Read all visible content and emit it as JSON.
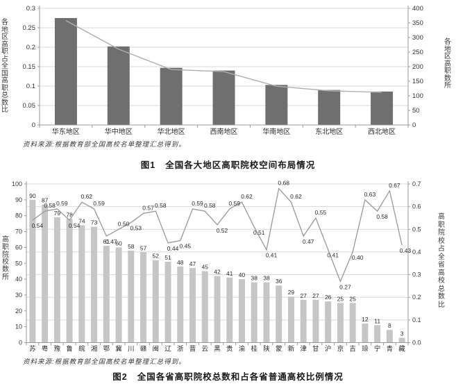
{
  "figures": [
    {
      "caption_label": "图1",
      "caption_text": "全国各大地区高职院校空间布局情况",
      "source_note": "资料来源:根据教育部全国高校名单整理汇总得到。"
    },
    {
      "caption_label": "图2",
      "caption_text": "全国各省高职院校总数和占各省普通高校比例情况",
      "source_note": "资料来源:根据教育部全国高校名单整理汇总得到。"
    }
  ],
  "chart_data": [
    {
      "type": "bar",
      "subtype": "bar+line combo, dual axis",
      "title": "图1 全国各大地区高职院校空间布局情况",
      "categories": [
        "华东地区",
        "华中地区",
        "华北地区",
        "西南地区",
        "华南地区",
        "东北地区",
        "西北地区"
      ],
      "series": [
        {
          "name": "各地区高职占全国高职总数比",
          "type": "bar",
          "axis": "left",
          "values": [
            0.275,
            0.202,
            0.147,
            0.14,
            0.103,
            0.09,
            0.086
          ],
          "labels_shown": false
        },
        {
          "name": "各地区高职数(所)",
          "type": "line",
          "axis": "right",
          "values": [
            358,
            260,
            190,
            183,
            133,
            117,
            112
          ],
          "labels_shown": false,
          "note": "values estimated from line position against right axis; chart shows no data labels"
        }
      ],
      "ylabel_left": "各地区高职占全国高职总数比",
      "ylabel_right": "各地区高职数所",
      "ylim_left": [
        0,
        0.3
      ],
      "ylim_right": [
        0,
        400
      ],
      "yticks_left": [
        "0.3",
        "0.25",
        "0.2",
        "0.15",
        "0.1",
        "0.05",
        "0"
      ],
      "yticks_right": [
        "400",
        "350",
        "300",
        "250",
        "200",
        "150",
        "100",
        "50",
        "0"
      ],
      "grid": "horizontal, every 0.05 of left axis",
      "legend": "none",
      "bar_color": "#6f6f6f",
      "line_color": "#aeaeae"
    },
    {
      "type": "bar",
      "subtype": "bar+line combo, dual axis",
      "title": "图2 全国各省高职院校总数和占各省普通高校比例情况",
      "categories": [
        "苏",
        "粤",
        "豫",
        "鲁",
        "皖",
        "湘",
        "鄂",
        "冀",
        "川",
        "赣",
        "闽",
        "辽",
        "浙",
        "晋",
        "云",
        "黑",
        "贵",
        "渝",
        "桂",
        "陕",
        "蒙",
        "新",
        "津",
        "甘",
        "沪",
        "京",
        "吉",
        "琼",
        "宁",
        "青",
        "藏"
      ],
      "series": [
        {
          "name": "高职院校数(所)",
          "type": "bar",
          "axis": "left",
          "values": [
            90,
            87,
            79,
            78,
            74,
            73,
            61,
            60,
            58,
            57,
            52,
            51,
            48,
            47,
            45,
            42,
            41,
            40,
            38,
            38,
            36,
            29,
            27,
            27,
            26,
            25,
            25,
            12,
            11,
            8,
            3
          ],
          "labels_shown": true
        },
        {
          "name": "高职院校占全省高校总数比",
          "type": "line",
          "axis": "right",
          "values": [
            0.54,
            0.58,
            0.59,
            0.54,
            0.62,
            0.59,
            0.47,
            0.5,
            0.53,
            0.57,
            0.58,
            0.44,
            0.45,
            0.59,
            0.58,
            0.52,
            0.59,
            0.62,
            0.51,
            0.41,
            0.68,
            0.62,
            0.47,
            0.55,
            0.41,
            0.27,
            0.4,
            0.63,
            0.58,
            0.67,
            0.43
          ],
          "labels_shown": true
        }
      ],
      "ylabel_left": "高职院校数所",
      "ylabel_right": "高职院校占全省高校总数比",
      "ylim_left": [
        0,
        100
      ],
      "ylim_right": [
        0,
        0.7
      ],
      "yticks_left": [
        "100",
        "90",
        "80",
        "70",
        "60",
        "50",
        "40",
        "30",
        "20",
        "10",
        "0"
      ],
      "yticks_right": [
        "0.7",
        "0.6",
        "0.5",
        "0.4",
        "0.3",
        "0.2",
        "0.1",
        "0.0"
      ],
      "grid": "horizontal, every 0.1 of right axis",
      "legend": "none",
      "bar_color": "#c6c6c6",
      "line_color": "#9e9e9e"
    }
  ]
}
